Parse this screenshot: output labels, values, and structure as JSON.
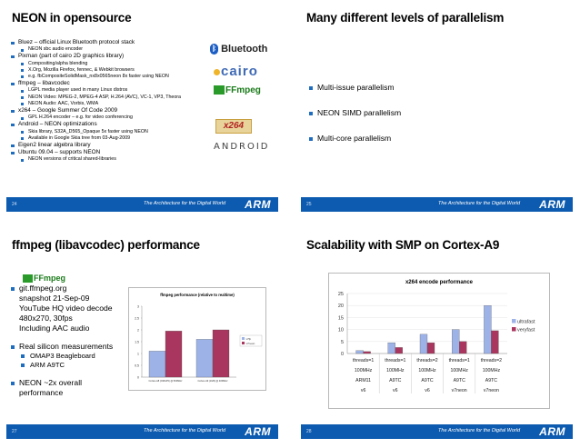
{
  "footer": {
    "tagline": "The Architecture for the Digital World",
    "brand": "ARM"
  },
  "slide1": {
    "title": "NEON in opensource",
    "page": "24",
    "items": [
      {
        "level": 1,
        "text": "Bluez – official Linux Bluetooth protocol stack"
      },
      {
        "level": 2,
        "text": "NEON sbc audio encoder"
      },
      {
        "level": 1,
        "text": "Pixman (part of cairo 2D graphics library)"
      },
      {
        "level": 2,
        "text": "Compositing/alpha blending"
      },
      {
        "level": 2,
        "text": "X.Org, Mozilla Firefox, fennec, & Webkit browsers"
      },
      {
        "level": 2,
        "text": "e.g. fbCompositeSolidMask_nx8x0565neon  8x faster using NEON"
      },
      {
        "level": 1,
        "text": "ffmpeg – libavcodec"
      },
      {
        "level": 2,
        "text": "LGPL media player used in many Linux distros"
      },
      {
        "level": 2,
        "text": "NEON Video: MPEG-2, MPEG-4 ASP, H.264 (AVC), VC-1, VP3, Theora"
      },
      {
        "level": 2,
        "text": "NEON Audio: AAC, Vorbis, WMA"
      },
      {
        "level": 1,
        "text": "x264 – Google Summer Of Code 2009"
      },
      {
        "level": 2,
        "text": "GPL H.264 encoder – e.g. for video conferencing"
      },
      {
        "level": 1,
        "text": "Android – NEON optimizations"
      },
      {
        "level": 2,
        "text": "Skia library, S32A_D565_Opaque  5x faster using NEON"
      },
      {
        "level": 2,
        "text": "Available in Google Skia tree from 03-Aug-2009"
      },
      {
        "level": 1,
        "text": "Eigen2 linear algebra library"
      },
      {
        "level": 1,
        "text": "Ubuntu 09.04 – supports NEON"
      },
      {
        "level": 2,
        "text": "NEON versions of critical shared-libraries"
      }
    ],
    "logos": {
      "bluetooth": "Bluetooth",
      "cairo": "cairo",
      "ffmpeg": "FFmpeg",
      "x264": "x264",
      "android": "ANDROID"
    }
  },
  "slide2": {
    "title": "Many different levels of parallelism",
    "page": "25",
    "items": [
      "Multi-issue parallelism",
      "NEON SIMD parallelism",
      "Multi-core parallelism"
    ]
  },
  "slide3": {
    "title": "ffmpeg (libavcodec) performance",
    "page": "27",
    "logo": "FFmpeg",
    "items": [
      {
        "level": 1,
        "text": "git.ffmpeg.org"
      },
      {
        "level": 0,
        "text": "snapshot 21-Sep-09"
      },
      {
        "level": 0,
        "text": "YouTube HQ video decode"
      },
      {
        "level": 0,
        "text": "480x270, 30fps"
      },
      {
        "level": 0,
        "text": "Including AAC audio"
      },
      {
        "level": 1,
        "text": "Real silicon measurements"
      },
      {
        "level": 2,
        "text": "OMAP3 Beagleboard"
      },
      {
        "level": 2,
        "text": "ARM A9TC"
      },
      {
        "level": 1,
        "text": "NEON ~2x overall"
      },
      {
        "level": 0,
        "text": "performance"
      }
    ]
  },
  "slide4": {
    "title": "Scalability with SMP on Cortex-A9",
    "page": "28"
  },
  "chart_data": [
    {
      "type": "bar",
      "title": "ffmpeg performance (relative to realtime)",
      "categories": [
        "Cortex-A8 (OMAP3) @ 500MHz",
        "Cortex-A9 (1GB) @ 400MHz"
      ],
      "series": [
        {
          "name": "v7fp",
          "values": [
            1.1,
            1.6
          ],
          "color": "#9db3e8"
        },
        {
          "name": "v7neon",
          "values": [
            1.95,
            2.0
          ],
          "color": "#a9365e"
        }
      ],
      "yticks": [
        0,
        0.5,
        1,
        1.5,
        2,
        2.5,
        3
      ],
      "ylim": [
        0,
        3
      ]
    },
    {
      "type": "bar",
      "title": "x264 encode performance",
      "categories": [
        [
          "threads=1",
          "100MHz",
          "ARM11",
          "v6"
        ],
        [
          "threads=1",
          "100MHz",
          "A9TC",
          "v6"
        ],
        [
          "threads=2",
          "100MHz",
          "A9TC",
          "v6"
        ],
        [
          "threads=1",
          "100MHz",
          "A9TC",
          "v7neon"
        ],
        [
          "threads=2",
          "100MHz",
          "A9TC",
          "v7neon"
        ]
      ],
      "series": [
        {
          "name": "ultrafast",
          "values": [
            1.2,
            4.5,
            8,
            10,
            20
          ],
          "color": "#9db3e8"
        },
        {
          "name": "veryfast",
          "values": [
            0.8,
            2.5,
            4.5,
            5,
            9.5
          ],
          "color": "#a9365e"
        }
      ],
      "yticks": [
        0,
        5,
        10,
        15,
        20,
        25
      ],
      "ylim": [
        0,
        25
      ]
    }
  ]
}
